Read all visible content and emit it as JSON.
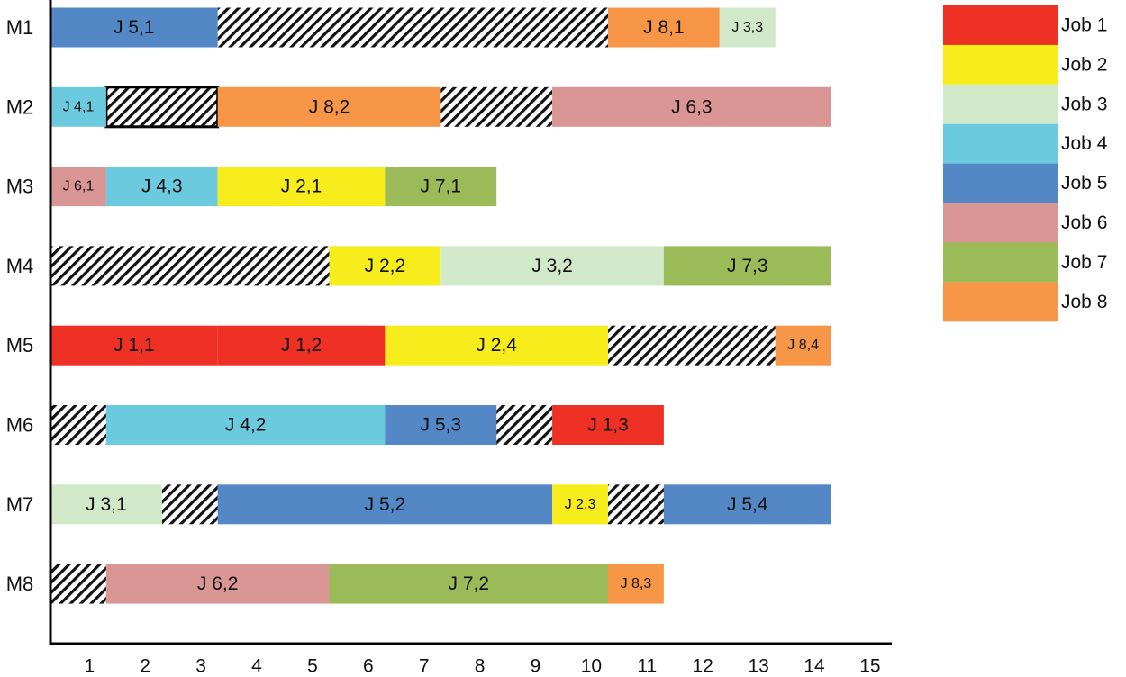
{
  "chart_data": {
    "type": "gantt",
    "title": "",
    "xlabel": "",
    "ylabel": "",
    "xlim": [
      0,
      15
    ],
    "x_ticks": [
      "1",
      "2",
      "3",
      "4",
      "5",
      "6",
      "7",
      "8",
      "9",
      "10",
      "11",
      "12",
      "13",
      "14",
      "15"
    ],
    "machines": [
      "M1",
      "M2",
      "M3",
      "M4",
      "M5",
      "M6",
      "M7",
      "M8"
    ],
    "jobs": [
      {
        "name": "Job 1",
        "color": "#ee3124"
      },
      {
        "name": "Job 2",
        "color": "#f7ec1c"
      },
      {
        "name": "Job 3",
        "color": "#d1e8c9"
      },
      {
        "name": "Job 4",
        "color": "#6ccadf"
      },
      {
        "name": "Job 5",
        "color": "#5387c5"
      },
      {
        "name": "Job 6",
        "color": "#d99695"
      },
      {
        "name": "Job 7",
        "color": "#9bbb59"
      },
      {
        "name": "Job 8",
        "color": "#f79646"
      }
    ],
    "operations": [
      {
        "machine": 0,
        "job": 4,
        "label": "J 5,1",
        "start": 0,
        "end": 3
      },
      {
        "machine": 0,
        "job": 7,
        "label": "J 8,1",
        "start": 10,
        "end": 12
      },
      {
        "machine": 0,
        "job": 2,
        "label": "J 3,3",
        "start": 12,
        "end": 13
      },
      {
        "machine": 1,
        "job": 3,
        "label": "J 4,1",
        "start": 0,
        "end": 1
      },
      {
        "machine": 1,
        "job": 7,
        "label": "J 8,2",
        "start": 3,
        "end": 7
      },
      {
        "machine": 1,
        "job": 5,
        "label": "J 6,3",
        "start": 9,
        "end": 14
      },
      {
        "machine": 2,
        "job": 5,
        "label": "J 6,1",
        "start": 0,
        "end": 1
      },
      {
        "machine": 2,
        "job": 3,
        "label": "J 4,3",
        "start": 1,
        "end": 3
      },
      {
        "machine": 2,
        "job": 1,
        "label": "J 2,1",
        "start": 3,
        "end": 6
      },
      {
        "machine": 2,
        "job": 6,
        "label": "J 7,1",
        "start": 6,
        "end": 8
      },
      {
        "machine": 3,
        "job": 1,
        "label": "J 2,2",
        "start": 5,
        "end": 7
      },
      {
        "machine": 3,
        "job": 2,
        "label": "J 3,2",
        "start": 7,
        "end": 11
      },
      {
        "machine": 3,
        "job": 6,
        "label": "J 7,3",
        "start": 11,
        "end": 14
      },
      {
        "machine": 4,
        "job": 0,
        "label": "J 1,1",
        "start": 0,
        "end": 3
      },
      {
        "machine": 4,
        "job": 0,
        "label": "J 1,2",
        "start": 3,
        "end": 6
      },
      {
        "machine": 4,
        "job": 1,
        "label": "J 2,4",
        "start": 6,
        "end": 10
      },
      {
        "machine": 4,
        "job": 7,
        "label": "J 8,4",
        "start": 13,
        "end": 14
      },
      {
        "machine": 5,
        "job": 3,
        "label": "J 4,2",
        "start": 1,
        "end": 6
      },
      {
        "machine": 5,
        "job": 4,
        "label": "J 5,3",
        "start": 6,
        "end": 8
      },
      {
        "machine": 5,
        "job": 0,
        "label": "J 1,3",
        "start": 9,
        "end": 11
      },
      {
        "machine": 6,
        "job": 2,
        "label": "J 3,1",
        "start": 0,
        "end": 2
      },
      {
        "machine": 6,
        "job": 4,
        "label": "J 5,2",
        "start": 3,
        "end": 9
      },
      {
        "machine": 6,
        "job": 1,
        "label": "J 2,3",
        "start": 9,
        "end": 10
      },
      {
        "machine": 6,
        "job": 4,
        "label": "J 5,4",
        "start": 11,
        "end": 14
      },
      {
        "machine": 7,
        "job": 5,
        "label": "J 6,2",
        "start": 1,
        "end": 5
      },
      {
        "machine": 7,
        "job": 6,
        "label": "J 7,2",
        "start": 5,
        "end": 10
      },
      {
        "machine": 7,
        "job": 7,
        "label": "J 8,3",
        "start": 10,
        "end": 11
      }
    ],
    "idle": [
      {
        "machine": 0,
        "start": 3,
        "end": 10,
        "outlined": false
      },
      {
        "machine": 1,
        "start": 1,
        "end": 3,
        "outlined": true
      },
      {
        "machine": 1,
        "start": 7,
        "end": 9,
        "outlined": false
      },
      {
        "machine": 3,
        "start": 0,
        "end": 5,
        "outlined": false
      },
      {
        "machine": 4,
        "start": 10,
        "end": 13,
        "outlined": false
      },
      {
        "machine": 5,
        "start": 0,
        "end": 1,
        "outlined": false
      },
      {
        "machine": 5,
        "start": 8,
        "end": 9,
        "outlined": false
      },
      {
        "machine": 6,
        "start": 2,
        "end": 3,
        "outlined": false
      },
      {
        "machine": 6,
        "start": 10,
        "end": 11,
        "outlined": false
      },
      {
        "machine": 7,
        "start": 0,
        "end": 1,
        "outlined": false
      }
    ],
    "legend_position": "top-right"
  }
}
